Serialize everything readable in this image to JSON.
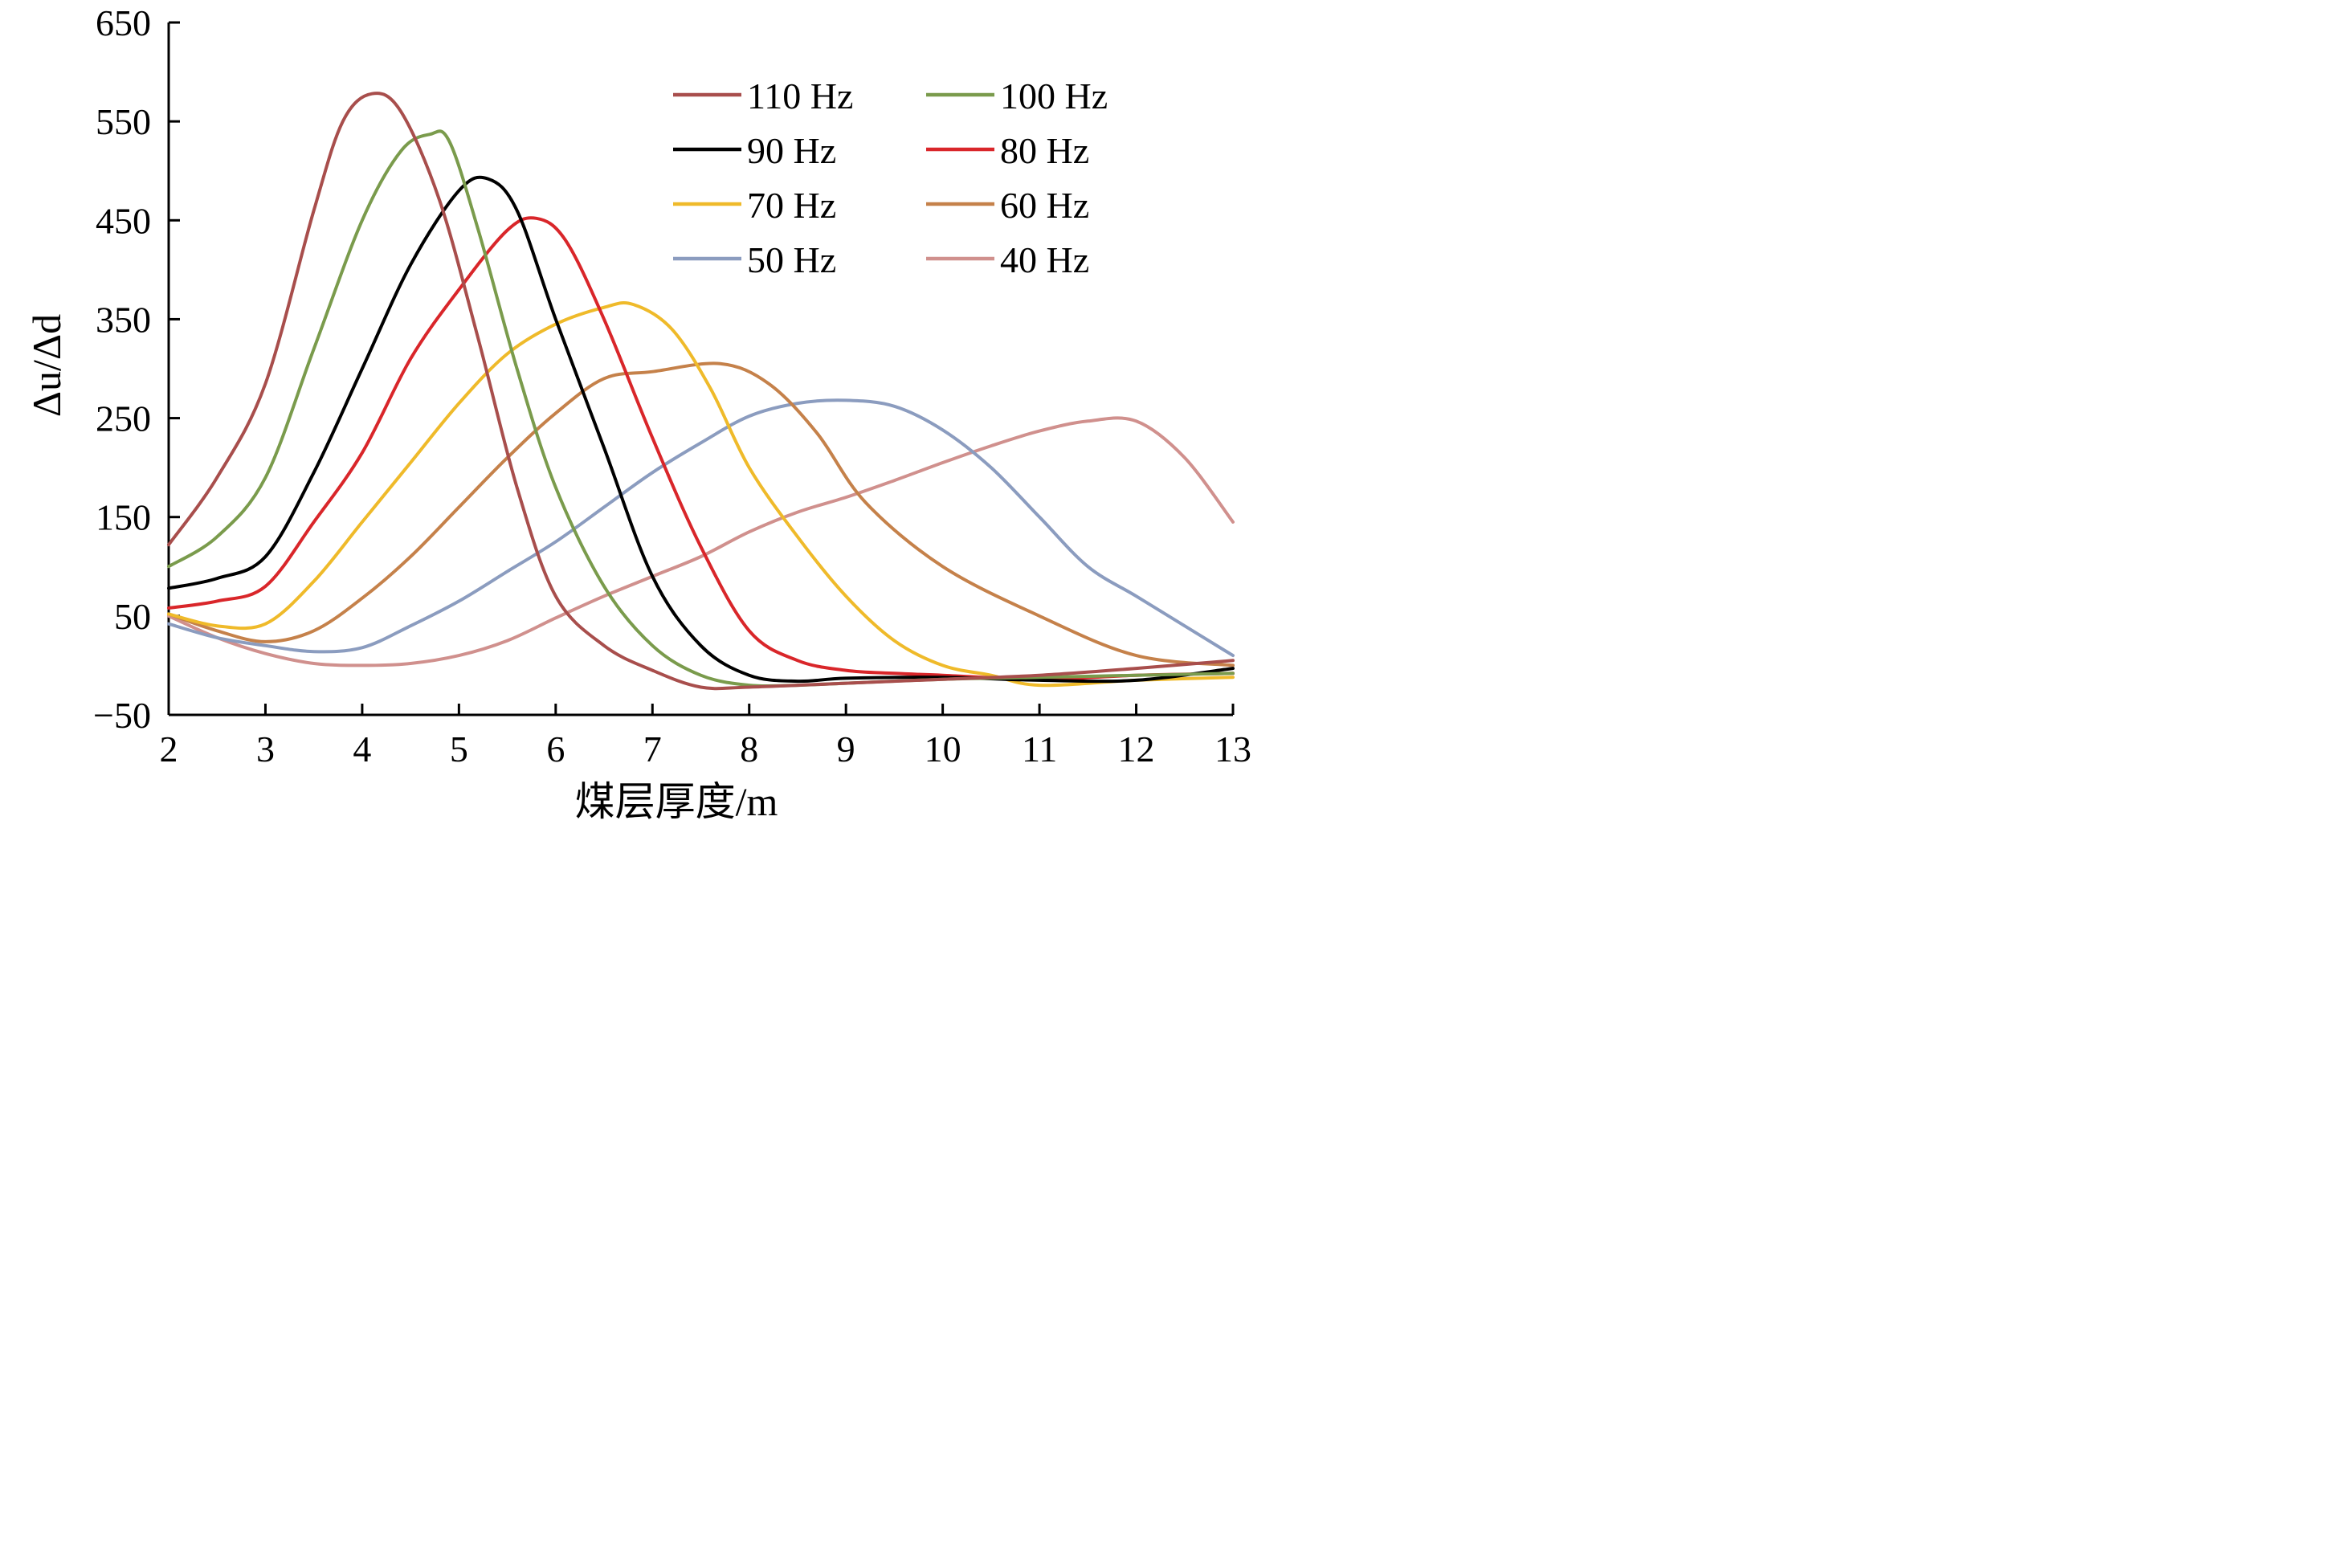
{
  "chart_data": {
    "type": "line",
    "title": "",
    "xlabel": "煤层厚度/m",
    "ylabel": "Δu/Δd",
    "xlim": [
      2,
      13
    ],
    "ylim": [
      -50,
      650
    ],
    "xticks": [
      "2",
      "3",
      "4",
      "5",
      "6",
      "7",
      "8",
      "9",
      "10",
      "11",
      "12",
      "13"
    ],
    "yticks": [
      "650",
      "550",
      "450",
      "350",
      "250",
      "150",
      "50",
      "−50"
    ],
    "ytick_values": [
      650,
      550,
      450,
      350,
      250,
      150,
      50,
      -50
    ],
    "grid": false,
    "legend_position": "top-right",
    "series": [
      {
        "name": "110 Hz",
        "color": "#a84e4c",
        "x": [
          2,
          2.5,
          3,
          3.5,
          3.8,
          4.1,
          4.4,
          4.8,
          5.2,
          5.6,
          6.0,
          6.5,
          7.0,
          7.5,
          8,
          9,
          10,
          11,
          12,
          13
        ],
        "y": [
          122,
          190,
          285,
          460,
          550,
          578,
          560,
          470,
          330,
          180,
          70,
          20,
          -5,
          -22,
          -22,
          -18,
          -14,
          -10,
          -3,
          5
        ]
      },
      {
        "name": "100 Hz",
        "color": "#7a9b4c",
        "x": [
          2,
          2.5,
          3,
          3.5,
          4,
          4.4,
          4.7,
          4.9,
          5.2,
          5.6,
          6.0,
          6.5,
          7.0,
          7.5,
          8,
          8.5,
          9,
          10,
          11,
          12,
          13
        ],
        "y": [
          100,
          130,
          190,
          320,
          450,
          520,
          537,
          530,
          440,
          300,
          180,
          80,
          20,
          -10,
          -20,
          -20,
          -18,
          -14,
          -12,
          -10,
          -8
        ]
      },
      {
        "name": "90 Hz",
        "color": "#000000",
        "x": [
          2,
          2.5,
          3,
          3.5,
          4,
          4.5,
          5,
          5.3,
          5.6,
          6.0,
          6.5,
          7.0,
          7.5,
          8,
          8.5,
          9,
          10,
          11,
          12,
          13
        ],
        "y": [
          78,
          88,
          110,
          195,
          300,
          405,
          480,
          492,
          460,
          350,
          220,
          90,
          20,
          -10,
          -16,
          -13,
          -12,
          -15,
          -15,
          -3
        ]
      },
      {
        "name": "80 Hz",
        "color": "#d9262a",
        "x": [
          2,
          2.5,
          3,
          3.5,
          4,
          4.5,
          5,
          5.5,
          5.8,
          6.1,
          6.5,
          7.0,
          7.5,
          8,
          8.5,
          9,
          9.5,
          10,
          11,
          12,
          13
        ],
        "y": [
          58,
          65,
          80,
          145,
          215,
          310,
          380,
          440,
          452,
          430,
          350,
          230,
          120,
          35,
          5,
          -5,
          -8,
          -10,
          -14,
          -10,
          -8
        ]
      },
      {
        "name": "70 Hz",
        "color": "#efba2a",
        "x": [
          2,
          2.5,
          3,
          3.5,
          4,
          4.5,
          5,
          5.5,
          6,
          6.5,
          6.8,
          7.2,
          7.6,
          8,
          8.5,
          9,
          9.5,
          10,
          10.5,
          11,
          12,
          13
        ],
        "y": [
          52,
          40,
          42,
          85,
          145,
          205,
          265,
          315,
          345,
          362,
          365,
          340,
          280,
          200,
          130,
          70,
          25,
          0,
          -10,
          -20,
          -15,
          -12
        ]
      },
      {
        "name": "60 Hz",
        "color": "#c5814a",
        "x": [
          2,
          2.5,
          3,
          3.5,
          4,
          4.5,
          5,
          5.5,
          6,
          6.5,
          7,
          7.7,
          8.2,
          8.7,
          9.2,
          10,
          11,
          12,
          13
        ],
        "y": [
          52,
          35,
          24,
          35,
          68,
          110,
          160,
          210,
          255,
          290,
          297,
          305,
          285,
          235,
          165,
          100,
          50,
          10,
          0
        ]
      },
      {
        "name": "50 Hz",
        "color": "#8b9cbf",
        "x": [
          2,
          2.5,
          3,
          3.5,
          4,
          4.5,
          5,
          5.5,
          6,
          6.5,
          7,
          7.5,
          8,
          8.5,
          9,
          9.5,
          10,
          10.5,
          11,
          11.5,
          12,
          12.5,
          13
        ],
        "y": [
          42,
          28,
          20,
          14,
          18,
          40,
          65,
          95,
          125,
          160,
          195,
          225,
          252,
          265,
          268,
          262,
          238,
          200,
          150,
          100,
          70,
          40,
          10
        ]
      },
      {
        "name": "40 Hz",
        "color": "#d0908d",
        "x": [
          2,
          2.5,
          3,
          3.5,
          4,
          4.5,
          5,
          5.5,
          6,
          6.5,
          7,
          7.5,
          8,
          8.5,
          9,
          9.5,
          10,
          10.5,
          11,
          11.5,
          12,
          12.5,
          13
        ],
        "y": [
          50,
          28,
          12,
          2,
          0,
          2,
          10,
          25,
          48,
          70,
          90,
          110,
          135,
          155,
          170,
          187,
          205,
          222,
          237,
          247,
          247,
          210,
          145
        ]
      }
    ]
  }
}
